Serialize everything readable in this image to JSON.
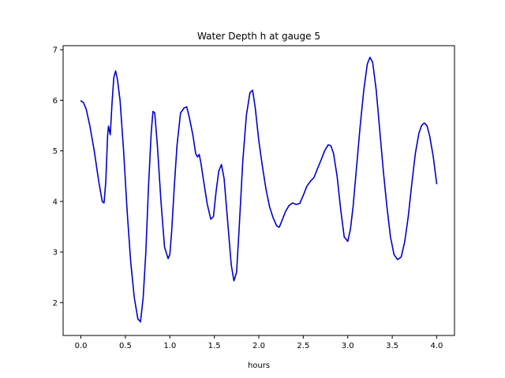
{
  "chart_data": {
    "type": "line",
    "title": "Water Depth h at gauge 5",
    "xlabel": "hours",
    "ylabel": "",
    "xlim": [
      -0.2,
      4.2
    ],
    "ylim": [
      1.35,
      7.08
    ],
    "xticks": [
      0.0,
      0.5,
      1.0,
      1.5,
      2.0,
      2.5,
      3.0,
      3.5,
      4.0
    ],
    "xtick_labels": [
      "0.0",
      "0.5",
      "1.0",
      "1.5",
      "2.0",
      "2.5",
      "3.0",
      "3.5",
      "4.0"
    ],
    "yticks": [
      2,
      3,
      4,
      5,
      6,
      7
    ],
    "ytick_labels": [
      "2",
      "3",
      "4",
      "5",
      "6",
      "7"
    ],
    "grid": false,
    "series": [
      {
        "name": "",
        "color": "#0000cc",
        "x": [
          0.0,
          0.03,
          0.06,
          0.1,
          0.15,
          0.2,
          0.24,
          0.26,
          0.28,
          0.3,
          0.31,
          0.33,
          0.35,
          0.37,
          0.39,
          0.41,
          0.44,
          0.48,
          0.52,
          0.56,
          0.6,
          0.64,
          0.67,
          0.7,
          0.73,
          0.76,
          0.79,
          0.81,
          0.83,
          0.86,
          0.9,
          0.94,
          0.98,
          1.0,
          1.02,
          1.05,
          1.08,
          1.12,
          1.16,
          1.19,
          1.22,
          1.26,
          1.29,
          1.31,
          1.33,
          1.35,
          1.38,
          1.42,
          1.46,
          1.49,
          1.52,
          1.55,
          1.58,
          1.61,
          1.65,
          1.69,
          1.72,
          1.75,
          1.78,
          1.82,
          1.86,
          1.9,
          1.93,
          1.96,
          2.0,
          2.04,
          2.08,
          2.12,
          2.16,
          2.2,
          2.23,
          2.26,
          2.3,
          2.34,
          2.38,
          2.42,
          2.46,
          2.5,
          2.54,
          2.58,
          2.62,
          2.66,
          2.7,
          2.74,
          2.78,
          2.81,
          2.84,
          2.88,
          2.92,
          2.96,
          3.0,
          3.03,
          3.06,
          3.1,
          3.14,
          3.18,
          3.22,
          3.25,
          3.28,
          3.32,
          3.36,
          3.4,
          3.44,
          3.48,
          3.52,
          3.56,
          3.6,
          3.64,
          3.68,
          3.72,
          3.76,
          3.8,
          3.83,
          3.86,
          3.89,
          3.92,
          3.96,
          4.0
        ],
        "y": [
          5.99,
          5.95,
          5.82,
          5.5,
          5.0,
          4.4,
          4.0,
          3.97,
          4.4,
          5.3,
          5.49,
          5.32,
          5.95,
          6.45,
          6.58,
          6.42,
          6.0,
          5.0,
          3.8,
          2.8,
          2.1,
          1.68,
          1.62,
          2.1,
          3.0,
          4.3,
          5.35,
          5.78,
          5.75,
          5.1,
          4.0,
          3.1,
          2.87,
          2.95,
          3.4,
          4.3,
          5.1,
          5.75,
          5.85,
          5.87,
          5.65,
          5.3,
          4.95,
          4.88,
          4.93,
          4.75,
          4.4,
          3.95,
          3.65,
          3.7,
          4.2,
          4.6,
          4.73,
          4.45,
          3.6,
          2.75,
          2.43,
          2.6,
          3.5,
          4.8,
          5.7,
          6.15,
          6.2,
          5.85,
          5.2,
          4.7,
          4.25,
          3.9,
          3.68,
          3.52,
          3.49,
          3.62,
          3.8,
          3.92,
          3.97,
          3.94,
          3.96,
          4.12,
          4.3,
          4.4,
          4.47,
          4.65,
          4.82,
          5.0,
          5.12,
          5.1,
          4.95,
          4.5,
          3.85,
          3.3,
          3.21,
          3.45,
          3.9,
          4.7,
          5.5,
          6.2,
          6.72,
          6.85,
          6.75,
          6.2,
          5.4,
          4.6,
          3.9,
          3.3,
          2.95,
          2.85,
          2.9,
          3.2,
          3.7,
          4.35,
          4.95,
          5.35,
          5.5,
          5.55,
          5.5,
          5.3,
          4.9,
          4.35
        ]
      }
    ]
  }
}
